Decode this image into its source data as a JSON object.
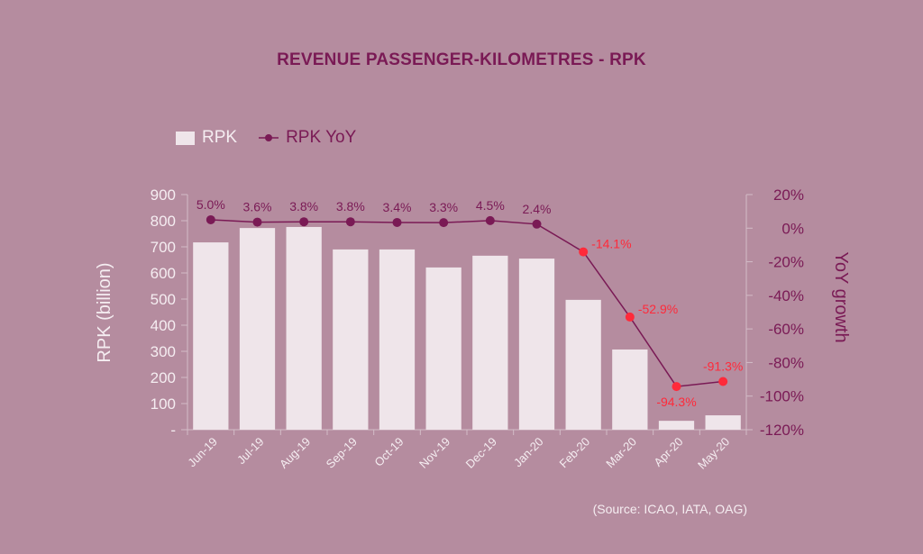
{
  "chart_data": {
    "type": "bar",
    "title": "REVENUE PASSENGER-KILOMETRES - RPK",
    "categories": [
      "Jun-19",
      "Jul-19",
      "Aug-19",
      "Sep-19",
      "Oct-19",
      "Nov-19",
      "Dec-19",
      "Jan-20",
      "Feb-20",
      "Mar-20",
      "Apr-20",
      "May-20"
    ],
    "series": [
      {
        "name": "RPK",
        "type": "bar",
        "axis": "left",
        "color": "#efe5ea",
        "values": [
          717,
          772,
          776,
          690,
          690,
          621,
          666,
          655,
          497,
          307,
          34,
          55
        ]
      },
      {
        "name": "RPK YoY",
        "type": "line",
        "axis": "right",
        "color": "#7a1a55",
        "negative_marker_color": "#ff2a3a",
        "values": [
          5.0,
          3.6,
          3.8,
          3.8,
          3.4,
          3.3,
          4.5,
          2.4,
          -14.1,
          -52.9,
          -94.3,
          -91.3
        ],
        "labels": [
          "5.0%",
          "3.6%",
          "3.8%",
          "3.8%",
          "3.4%",
          "3.3%",
          "4.5%",
          "2.4%",
          "-14.1%",
          "-52.9%",
          "-94.3%",
          "-91.3%"
        ]
      }
    ],
    "ylabel": "RPK (billion)",
    "ylabel_right": "YoY growth",
    "ylim": [
      0,
      900
    ],
    "ylim_right": [
      -120,
      20
    ],
    "yticks": [
      "-",
      "100",
      "200",
      "300",
      "400",
      "500",
      "600",
      "700",
      "800",
      "900"
    ],
    "yticks_right": [
      "-120%",
      "-100%",
      "-80%",
      "-60%",
      "-40%",
      "-20%",
      "0%",
      "20%"
    ],
    "grid": false,
    "legend": {
      "position": "top-left",
      "entries": [
        "RPK",
        "RPK YoY"
      ]
    },
    "source": "(Source: ICAO, IATA, OAG)"
  }
}
